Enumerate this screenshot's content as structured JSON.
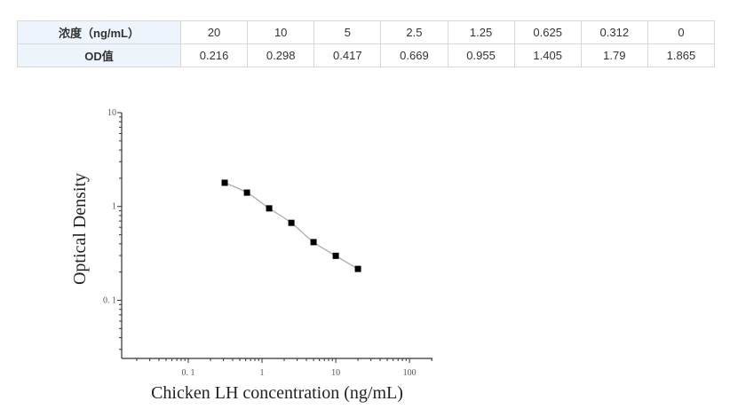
{
  "table": {
    "rows": [
      {
        "header": "浓度（ng/mL）",
        "cells": [
          "20",
          "10",
          "5",
          "2.5",
          "1.25",
          "0.625",
          "0.312",
          "0"
        ]
      },
      {
        "header": "OD值",
        "cells": [
          "0.216",
          "0.298",
          "0.417",
          "0.669",
          "0.955",
          "1.405",
          "1.79",
          "1.865"
        ]
      }
    ]
  },
  "chart_data": {
    "type": "scatter",
    "xlabel": "Chicken LH concentration (ng/mL)",
    "ylabel": "Optical Density",
    "xscale": "log",
    "yscale": "log",
    "xlim": [
      0.0125,
      205
    ],
    "ylim": [
      0.024,
      10
    ],
    "xticks": [
      {
        "v": 0.1,
        "label": "0. 1"
      },
      {
        "v": 1,
        "label": "1"
      },
      {
        "v": 10,
        "label": "10"
      },
      {
        "v": 100,
        "label": "100"
      }
    ],
    "yticks": [
      {
        "v": 0.1,
        "label": "0. 1"
      },
      {
        "v": 1,
        "label": "1"
      },
      {
        "v": 10,
        "label": "10"
      }
    ],
    "x": [
      0.312,
      0.625,
      1.25,
      2.5,
      5,
      10,
      20
    ],
    "y": [
      1.79,
      1.405,
      0.955,
      0.669,
      0.417,
      0.298,
      0.216
    ],
    "fit_line": true,
    "grid": false,
    "marker_color": "#000000",
    "line_color": "#aaaaaa"
  }
}
